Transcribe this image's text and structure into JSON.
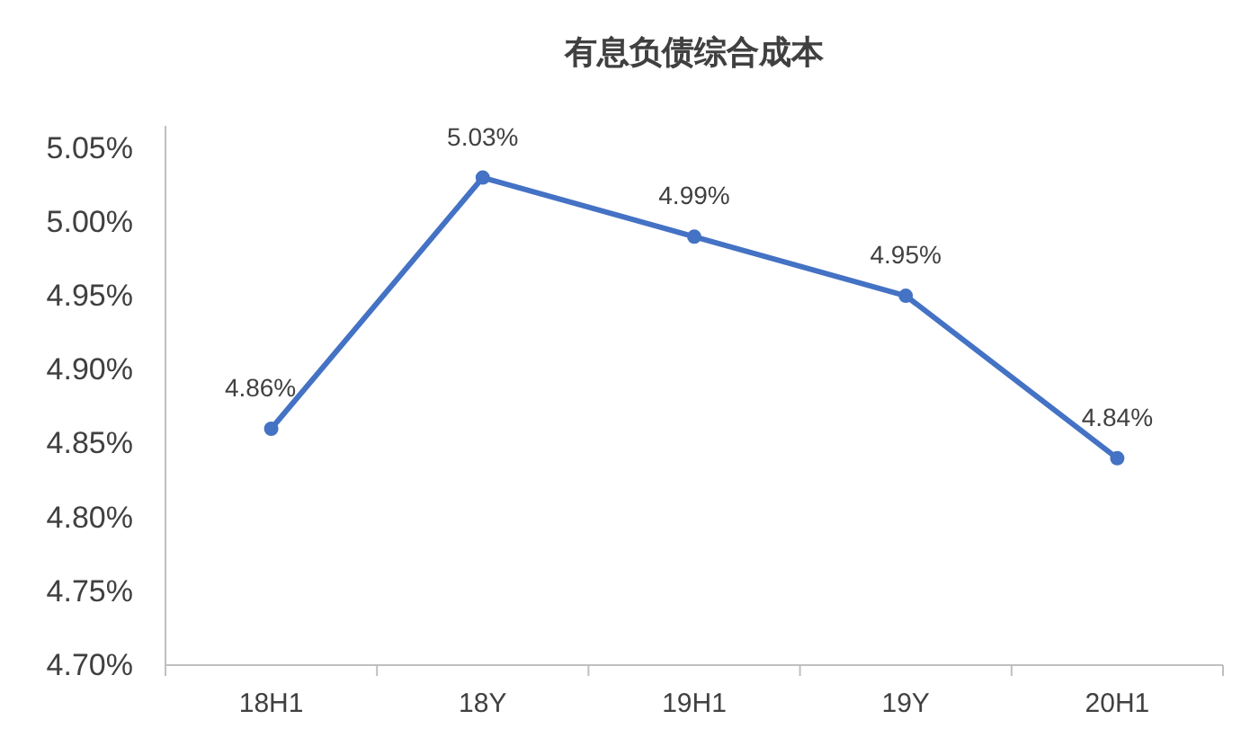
{
  "chart_data": {
    "type": "line",
    "title": "有息负债综合成本",
    "categories": [
      "18H1",
      "18Y",
      "19H1",
      "19Y",
      "20H1"
    ],
    "series": [
      {
        "color": "#4472c4",
        "values": [
          4.86,
          5.03,
          4.99,
          4.95,
          4.84
        ],
        "value_labels": [
          "4.86%",
          "5.03%",
          "4.99%",
          "4.95%",
          "4.84%"
        ]
      }
    ],
    "ylim": [
      4.7,
      5.065
    ],
    "yticks": [
      {
        "value": 4.7,
        "label": "4.70%"
      },
      {
        "value": 4.75,
        "label": "4.75%"
      },
      {
        "value": 4.8,
        "label": "4.80%"
      },
      {
        "value": 4.85,
        "label": "4.85%"
      },
      {
        "value": 4.9,
        "label": "4.90%"
      },
      {
        "value": 4.95,
        "label": "4.95%"
      },
      {
        "value": 5.0,
        "label": "5.00%"
      },
      {
        "value": 5.05,
        "label": "5.05%"
      }
    ],
    "grid": false,
    "marker": "circle",
    "line_style": "solid"
  }
}
